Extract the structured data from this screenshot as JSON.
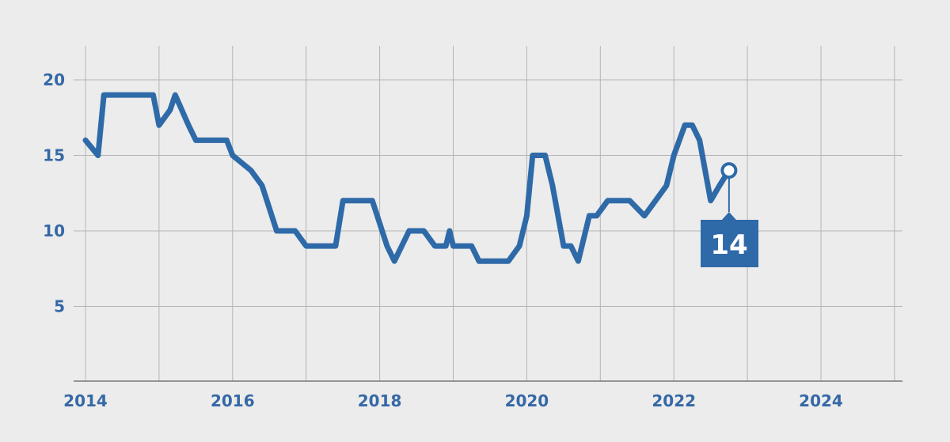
{
  "chart_data": {
    "type": "line",
    "title": "",
    "xlabel": "",
    "ylabel": "",
    "xlim": [
      2014,
      2025.1
    ],
    "ylim": [
      0,
      22
    ],
    "x_ticks": [
      "2014",
      "2016",
      "2018",
      "2020",
      "2022",
      "2024"
    ],
    "y_ticks": [
      "5",
      "10",
      "15",
      "20"
    ],
    "grid": true,
    "colors": {
      "line": "#2f6aa8",
      "text": "#3568a6",
      "grid": "#b4b4b4",
      "background": "#ececec"
    },
    "series": [
      {
        "x": [
          2014.0,
          2014.17,
          2014.25,
          2014.5,
          2014.75,
          2014.92,
          2015.0,
          2015.15,
          2015.22,
          2015.4,
          2015.5,
          2015.75,
          2015.92,
          2016.0,
          2016.25,
          2016.4,
          2016.6,
          2016.85,
          2017.0,
          2017.25,
          2017.4,
          2017.5,
          2017.75,
          2017.9,
          2018.1,
          2018.2,
          2018.4,
          2018.6,
          2018.75,
          2018.9,
          2018.95,
          2019.0,
          2019.25,
          2019.35,
          2019.5,
          2019.75,
          2019.9,
          2020.0,
          2020.08,
          2020.25,
          2020.35,
          2020.5,
          2020.6,
          2020.7,
          2020.85,
          2020.95,
          2021.1,
          2021.25,
          2021.4,
          2021.6,
          2021.75,
          2021.9,
          2022.0,
          2022.15,
          2022.25,
          2022.35,
          2022.5,
          2022.62,
          2022.75
        ],
        "y": [
          16,
          15,
          19,
          19,
          19,
          19,
          17,
          18,
          19,
          17,
          16,
          16,
          16,
          15,
          14,
          13,
          10,
          10,
          9,
          9,
          9,
          12,
          12,
          12,
          9,
          8,
          10,
          10,
          9,
          9,
          10,
          9,
          9,
          8,
          8,
          8,
          9,
          11,
          15,
          15,
          13,
          9,
          9,
          8,
          11,
          11,
          12,
          12,
          12,
          11,
          12,
          13,
          15,
          17,
          17,
          16,
          12,
          13,
          14
        ]
      }
    ],
    "annotations": [
      {
        "x": 2022.75,
        "y": 14,
        "text": "14"
      }
    ]
  }
}
